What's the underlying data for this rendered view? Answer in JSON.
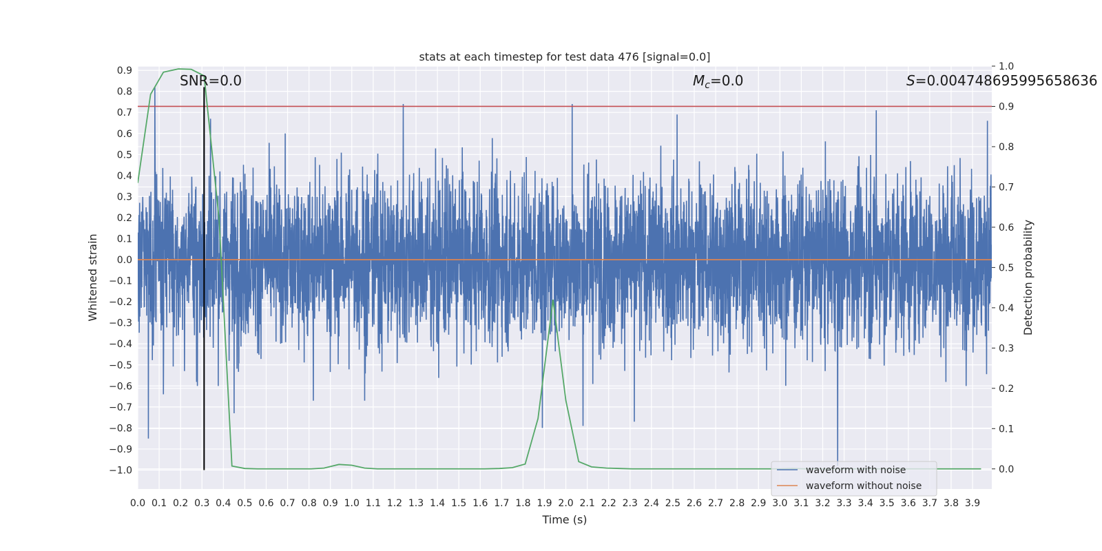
{
  "chart_data": {
    "type": "line",
    "title": "stats at each timestep for test data 476 [signal=0.0]",
    "xlabel": "Time (s)",
    "ylabel": "Whitened strain",
    "y2label": "Detection probability",
    "xlim": [
      0.0,
      3.99
    ],
    "ylim": [
      -1.09,
      0.92
    ],
    "y2lim": [
      -0.05,
      1.0
    ],
    "xticks": [
      "0.0",
      "0.1",
      "0.2",
      "0.3",
      "0.4",
      "0.5",
      "0.6",
      "0.7",
      "0.8",
      "0.9",
      "1.0",
      "1.1",
      "1.2",
      "1.3",
      "1.4",
      "1.5",
      "1.6",
      "1.7",
      "1.8",
      "1.9",
      "2.0",
      "2.1",
      "2.2",
      "2.3",
      "2.4",
      "2.5",
      "2.6",
      "2.7",
      "2.8",
      "2.9",
      "3.0",
      "3.1",
      "3.2",
      "3.3",
      "3.4",
      "3.5",
      "3.6",
      "3.7",
      "3.8",
      "3.9"
    ],
    "yticks": [
      "0.9",
      "0.8",
      "0.7",
      "0.6",
      "0.5",
      "0.4",
      "0.3",
      "0.2",
      "0.1",
      "0.0",
      "−0.1",
      "−0.2",
      "−0.3",
      "−0.4",
      "−0.5",
      "−0.6",
      "−0.7",
      "−0.8",
      "−0.9",
      "−1.0"
    ],
    "y2ticks": [
      "1.0",
      "0.9",
      "0.8",
      "0.7",
      "0.6",
      "0.5",
      "0.4",
      "0.3",
      "0.2",
      "0.1",
      "0.0"
    ],
    "annotations": {
      "snr": "SNR=0.0",
      "mc_symbol": "M",
      "mc_sub": "c",
      "mc_value": "=0.0",
      "s_symbol": "S",
      "s_value": "=0.004748695995658636"
    },
    "threshold_line": {
      "axis": "y2",
      "value": 0.9,
      "color": "#c44e52"
    },
    "vertical_marker": {
      "x": 0.31,
      "y_from": -1.0,
      "y_to": 0.82,
      "color": "#000000"
    },
    "legend": {
      "position": "lower right",
      "entries": [
        {
          "label": "waveform with noise",
          "color": "#4c72b0"
        },
        {
          "label": "waveform without noise",
          "color": "#dd8452"
        }
      ]
    },
    "series": [
      {
        "name": "waveform with noise",
        "axis": "y",
        "color": "#4c72b0",
        "t_start": 0.0,
        "t_end": 3.99,
        "samples": 4096,
        "amplitude_std": 0.2,
        "peaks": [
          [
            0.05,
            -0.85
          ],
          [
            0.08,
            0.82
          ],
          [
            0.12,
            -0.64
          ],
          [
            0.31,
            0.79
          ],
          [
            0.34,
            0.67
          ],
          [
            0.45,
            -0.73
          ],
          [
            0.82,
            -0.67
          ],
          [
            1.06,
            -0.67
          ],
          [
            1.24,
            0.74
          ],
          [
            1.89,
            -0.8
          ],
          [
            2.03,
            0.74
          ],
          [
            2.08,
            -0.79
          ],
          [
            2.32,
            -0.77
          ],
          [
            2.52,
            0.69
          ],
          [
            3.27,
            -0.98
          ],
          [
            3.45,
            0.71
          ],
          [
            3.97,
            0.66
          ]
        ]
      },
      {
        "name": "waveform without noise",
        "axis": "y",
        "color": "#dd8452",
        "x": [
          0.0,
          3.99
        ],
        "y": [
          0.0,
          0.0
        ]
      },
      {
        "name": "detection probability",
        "axis": "y2",
        "color": "#55a868",
        "x": [
          0.0,
          0.06,
          0.12,
          0.19,
          0.25,
          0.31,
          0.38,
          0.44,
          0.5,
          0.56,
          0.62,
          0.69,
          0.75,
          0.81,
          0.87,
          0.94,
          1.0,
          1.06,
          1.12,
          1.19,
          1.25,
          1.31,
          1.37,
          1.44,
          1.5,
          1.56,
          1.62,
          1.69,
          1.75,
          1.81,
          1.87,
          1.94,
          2.0,
          2.06,
          2.12,
          2.19,
          2.25,
          2.31,
          2.37,
          2.44,
          2.5,
          2.56,
          2.62,
          2.69,
          2.75,
          2.81,
          2.87,
          2.94,
          3.0,
          3.06,
          3.12,
          3.19,
          3.25,
          3.31,
          3.37,
          3.44,
          3.5,
          3.56,
          3.62,
          3.69,
          3.75,
          3.81,
          3.87,
          3.94
        ],
        "y": [
          0.71,
          0.93,
          0.985,
          0.993,
          0.992,
          0.976,
          0.62,
          0.007,
          0.001,
          0.0,
          0.0,
          0.0,
          0.0,
          0.0,
          0.002,
          0.011,
          0.009,
          0.002,
          0.0,
          0.0,
          0.0,
          0.0,
          0.0,
          0.0,
          0.0,
          0.0,
          0.0,
          0.001,
          0.003,
          0.012,
          0.125,
          0.42,
          0.17,
          0.018,
          0.005,
          0.002,
          0.001,
          0.0,
          0.0,
          0.0,
          0.0,
          0.0,
          0.0,
          0.0,
          0.0,
          0.0,
          0.0,
          0.0,
          0.0,
          0.001,
          0.0,
          0.0,
          0.0,
          0.0,
          0.0,
          0.0,
          0.0,
          0.0,
          0.0,
          0.0,
          0.0,
          0.0,
          0.0,
          0.0
        ]
      }
    ]
  }
}
